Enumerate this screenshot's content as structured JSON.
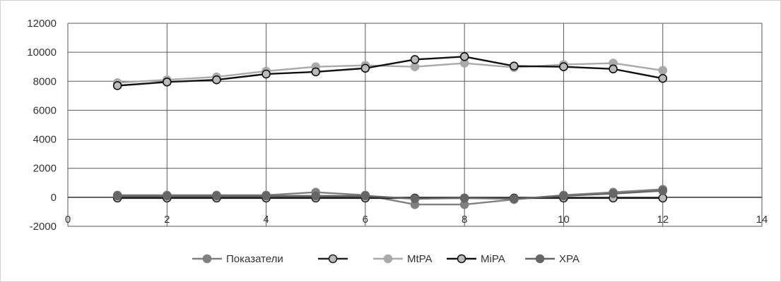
{
  "chart_data": {
    "type": "scatter",
    "xlim": [
      0,
      14
    ],
    "ylim": [
      -2000,
      12000
    ],
    "x_ticks": [
      0,
      2,
      4,
      6,
      8,
      10,
      12,
      14
    ],
    "y_ticks": [
      -2000,
      0,
      2000,
      4000,
      6000,
      8000,
      10000,
      12000
    ],
    "grid": true,
    "legend_position": "bottom",
    "series": [
      {
        "name": "Показатели",
        "color": "#808080",
        "marker_fill": "#808080",
        "x": [
          1,
          2,
          3,
          4,
          5,
          6,
          7,
          8,
          9,
          10,
          11,
          12
        ],
        "values": [
          150,
          150,
          150,
          150,
          350,
          150,
          -500,
          -500,
          -150,
          150,
          350,
          550
        ]
      },
      {
        "name": "",
        "color": "#222222",
        "marker_fill": "#bbbbbb",
        "x": [
          1,
          2,
          3,
          4,
          5,
          6,
          7,
          8,
          9,
          10,
          11,
          12
        ],
        "values": [
          -50,
          -50,
          -50,
          -50,
          -50,
          -50,
          -50,
          -50,
          -50,
          -50,
          -50,
          -50
        ]
      },
      {
        "name": "MtPA",
        "color": "#aaaaaa",
        "marker_fill": "#aaaaaa",
        "x": [
          1,
          2,
          3,
          4,
          5,
          6,
          7,
          8,
          9,
          10,
          11,
          12
        ],
        "values": [
          7900,
          8100,
          8300,
          8700,
          9000,
          9100,
          9000,
          9250,
          8950,
          9150,
          9250,
          8750
        ]
      },
      {
        "name": "MiPA",
        "color": "#111111",
        "marker_fill": "#bbbbbb",
        "x": [
          1,
          2,
          3,
          4,
          5,
          6,
          7,
          8,
          9,
          10,
          11,
          12
        ],
        "values": [
          7700,
          7950,
          8100,
          8500,
          8650,
          8900,
          9500,
          9700,
          9050,
          9000,
          8850,
          8200
        ]
      },
      {
        "name": "XPA",
        "color": "#666666",
        "marker_fill": "#666666",
        "x": [
          1,
          2,
          3,
          4,
          5,
          6,
          7,
          8,
          9,
          10,
          11,
          12
        ],
        "values": [
          100,
          100,
          100,
          100,
          100,
          100,
          -100,
          -50,
          -100,
          100,
          250,
          450
        ]
      }
    ]
  }
}
